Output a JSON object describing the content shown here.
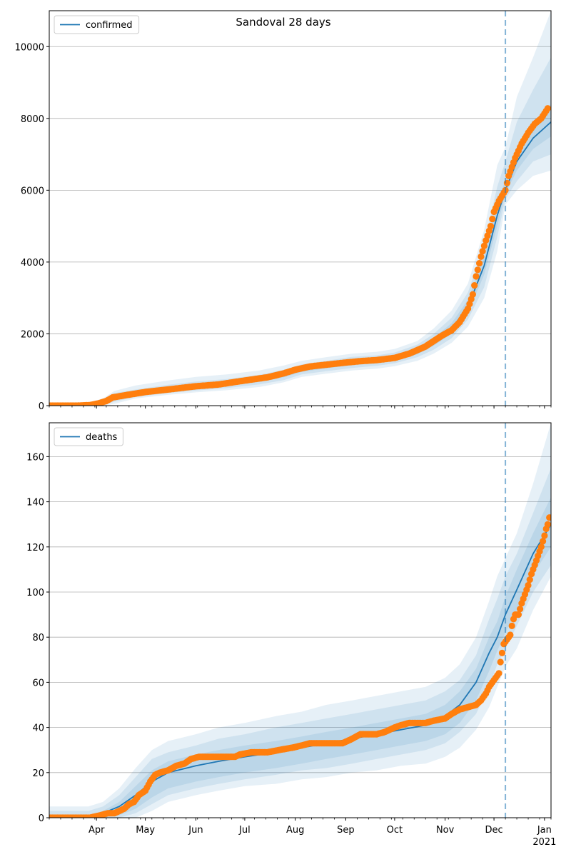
{
  "title": "Sandoval 28 days",
  "colors": {
    "model": "#1f77b4",
    "observed": "#ff7f0e",
    "band": "#1f77b4",
    "grid": "#b0b0b0"
  },
  "x_axis": {
    "start": "2020-03-03",
    "end": "2021-01-05",
    "forecast_date": "2020-12-08",
    "ticks": [
      {
        "date": "2020-04-01",
        "label": "Apr"
      },
      {
        "date": "2020-05-01",
        "label": "May"
      },
      {
        "date": "2020-06-01",
        "label": "Jun"
      },
      {
        "date": "2020-07-01",
        "label": "Jul"
      },
      {
        "date": "2020-08-01",
        "label": "Aug"
      },
      {
        "date": "2020-09-01",
        "label": "Sep"
      },
      {
        "date": "2020-10-01",
        "label": "Oct"
      },
      {
        "date": "2020-11-01",
        "label": "Nov"
      },
      {
        "date": "2020-12-01",
        "label": "Dec"
      },
      {
        "date": "2021-01-01",
        "label": "Jan"
      }
    ],
    "year_label": "2021"
  },
  "chart_data": [
    {
      "type": "line",
      "legend": "confirmed",
      "legend_position": "top-left",
      "grid": "y",
      "ylim": [
        0,
        11000
      ],
      "yticks": [
        0,
        2000,
        4000,
        6000,
        8000,
        10000
      ],
      "model": {
        "name": "confirmed",
        "points": [
          [
            "2020-03-03",
            0
          ],
          [
            "2020-03-27",
            5
          ],
          [
            "2020-04-05",
            100
          ],
          [
            "2020-04-12",
            230
          ],
          [
            "2020-04-25",
            330
          ],
          [
            "2020-05-15",
            450
          ],
          [
            "2020-06-01",
            530
          ],
          [
            "2020-06-20",
            600
          ],
          [
            "2020-07-10",
            720
          ],
          [
            "2020-07-25",
            850
          ],
          [
            "2020-08-05",
            1000
          ],
          [
            "2020-08-20",
            1100
          ],
          [
            "2020-09-05",
            1200
          ],
          [
            "2020-09-20",
            1250
          ],
          [
            "2020-10-01",
            1330
          ],
          [
            "2020-10-15",
            1520
          ],
          [
            "2020-10-25",
            1780
          ],
          [
            "2020-11-05",
            2150
          ],
          [
            "2020-11-15",
            2750
          ],
          [
            "2020-11-25",
            3900
          ],
          [
            "2020-12-03",
            5300
          ],
          [
            "2020-12-08",
            6000
          ],
          [
            "2020-12-15",
            6800
          ],
          [
            "2020-12-25",
            7450
          ],
          [
            "2021-01-05",
            7900
          ]
        ],
        "bands": [
          {
            "lower": [
              0,
              0,
              0,
              50,
              200,
              300,
              370,
              430,
              520,
              650,
              800,
              890,
              980,
              1030,
              1100,
              1250,
              1450,
              1750,
              2200,
              3000,
              4300,
              5600,
              6000,
              6400,
              6550
            ],
            "upper": [
              80,
              80,
              200,
              410,
              560,
              700,
              800,
              870,
              980,
              1120,
              1250,
              1350,
              1450,
              1500,
              1580,
              1800,
              2150,
              2650,
              3400,
              4900,
              6700,
              7200,
              8600,
              9700,
              11000
            ]
          },
          {
            "lower": [
              0,
              0,
              20,
              110,
              240,
              350,
              420,
              490,
              590,
              710,
              870,
              960,
              1050,
              1110,
              1180,
              1350,
              1560,
              1880,
              2400,
              3300,
              4700,
              5750,
              6250,
              6800,
              7000
            ],
            "upper": [
              40,
              40,
              170,
              350,
              450,
              580,
              670,
              740,
              860,
              1000,
              1150,
              1250,
              1360,
              1400,
              1480,
              1700,
              2000,
              2450,
              3150,
              4500,
              6100,
              6800,
              7900,
              8800,
              9700
            ]
          },
          {
            "lower": [
              0,
              0,
              60,
              180,
              280,
              400,
              480,
              550,
              660,
              790,
              940,
              1040,
              1130,
              1180,
              1250,
              1430,
              1670,
              2000,
              2570,
              3650,
              5000,
              5900,
              6550,
              7150,
              7500
            ],
            "upper": [
              15,
              15,
              130,
              280,
              380,
              500,
              580,
              650,
              780,
              910,
              1060,
              1160,
              1270,
              1320,
              1410,
              1610,
              1890,
              2300,
              2950,
              4150,
              5600,
              6300,
              7200,
              7900,
              8400
            ]
          }
        ]
      },
      "observed": {
        "name": "observed",
        "points": [
          [
            "2020-03-03",
            0
          ],
          [
            "2020-03-20",
            0
          ],
          [
            "2020-03-28",
            15
          ],
          [
            "2020-04-02",
            60
          ],
          [
            "2020-04-07",
            130
          ],
          [
            "2020-04-11",
            230
          ],
          [
            "2020-04-20",
            300
          ],
          [
            "2020-05-01",
            380
          ],
          [
            "2020-05-15",
            450
          ],
          [
            "2020-06-01",
            540
          ],
          [
            "2020-06-15",
            590
          ],
          [
            "2020-07-01",
            700
          ],
          [
            "2020-07-15",
            790
          ],
          [
            "2020-07-25",
            900
          ],
          [
            "2020-08-01",
            1000
          ],
          [
            "2020-08-10",
            1090
          ],
          [
            "2020-08-20",
            1140
          ],
          [
            "2020-09-01",
            1200
          ],
          [
            "2020-09-10",
            1240
          ],
          [
            "2020-09-20",
            1270
          ],
          [
            "2020-10-01",
            1330
          ],
          [
            "2020-10-10",
            1450
          ],
          [
            "2020-10-20",
            1650
          ],
          [
            "2020-10-30",
            1950
          ],
          [
            "2020-11-05",
            2100
          ],
          [
            "2020-11-10",
            2330
          ],
          [
            "2020-11-15",
            2700
          ],
          [
            "2020-11-18",
            3100
          ],
          [
            "2020-11-20",
            3600
          ],
          [
            "2020-11-23",
            4150
          ],
          [
            "2020-11-26",
            4600
          ],
          [
            "2020-11-29",
            5000
          ],
          [
            "2020-12-01",
            5400
          ],
          [
            "2020-12-04",
            5700
          ],
          [
            "2020-12-08",
            6000
          ],
          [
            "2020-12-10",
            6400
          ],
          [
            "2020-12-14",
            6900
          ],
          [
            "2020-12-18",
            7300
          ],
          [
            "2020-12-22",
            7600
          ],
          [
            "2020-12-26",
            7850
          ],
          [
            "2020-12-30",
            8000
          ],
          [
            "2021-01-03",
            8280
          ]
        ]
      }
    },
    {
      "type": "line",
      "legend": "deaths",
      "legend_position": "top-left",
      "grid": "y",
      "ylim": [
        0,
        175
      ],
      "yticks": [
        0,
        20,
        40,
        60,
        80,
        100,
        120,
        140,
        160
      ],
      "model": {
        "name": "deaths",
        "points": [
          [
            "2020-03-03",
            0
          ],
          [
            "2020-03-27",
            0
          ],
          [
            "2020-04-05",
            2
          ],
          [
            "2020-04-15",
            5
          ],
          [
            "2020-04-25",
            10
          ],
          [
            "2020-05-05",
            16
          ],
          [
            "2020-05-15",
            20
          ],
          [
            "2020-06-01",
            23
          ],
          [
            "2020-06-15",
            25
          ],
          [
            "2020-07-01",
            27
          ],
          [
            "2020-07-20",
            29
          ],
          [
            "2020-08-05",
            31
          ],
          [
            "2020-08-20",
            33
          ],
          [
            "2020-09-05",
            35
          ],
          [
            "2020-09-20",
            37
          ],
          [
            "2020-10-05",
            39
          ],
          [
            "2020-10-20",
            41
          ],
          [
            "2020-11-01",
            45
          ],
          [
            "2020-11-10",
            50
          ],
          [
            "2020-11-20",
            60
          ],
          [
            "2020-11-28",
            73
          ],
          [
            "2020-12-03",
            80
          ],
          [
            "2020-12-08",
            90
          ],
          [
            "2020-12-15",
            101
          ],
          [
            "2020-12-25",
            117
          ],
          [
            "2021-01-05",
            130
          ]
        ],
        "bands": [
          {
            "lower": [
              0,
              0,
              0,
              0,
              0,
              3,
              7,
              10,
              12,
              14,
              15,
              17,
              18,
              20,
              21,
              23,
              24,
              27,
              31,
              39,
              49,
              58,
              67,
              75,
              92,
              107
            ],
            "upper": [
              5,
              5,
              7,
              13,
              22,
              30,
              34,
              37,
              40,
              42,
              45,
              47,
              50,
              52,
              54,
              56,
              58,
              62,
              68,
              80,
              96,
              107,
              115,
              126,
              148,
              175
            ]
          },
          {
            "lower": [
              0,
              0,
              0,
              0,
              2,
              6,
              10,
              13,
              15,
              17,
              19,
              21,
              22,
              24,
              26,
              28,
              30,
              33,
              38,
              46,
              58,
              68,
              75,
              85,
              100,
              112
            ],
            "upper": [
              3,
              3,
              5,
              10,
              18,
              26,
              29,
              32,
              35,
              37,
              40,
              42,
              44,
              46,
              48,
              50,
              52,
              56,
              61,
              72,
              88,
              97,
              107,
              117,
              135,
              155
            ]
          },
          {
            "lower": [
              0,
              0,
              0,
              1,
              4,
              9,
              13,
              16,
              18,
              20,
              22,
              24,
              26,
              28,
              30,
              32,
              34,
              37,
              42,
              52,
              65,
              74,
              82,
              92,
              108,
              120
            ],
            "upper": [
              1,
              1,
              3,
              7,
              14,
              21,
              25,
              28,
              30,
              32,
              34,
              36,
              38,
              40,
              42,
              44,
              46,
              50,
              56,
              66,
              80,
              87,
              98,
              110,
              126,
              142
            ]
          }
        ]
      },
      "observed": {
        "name": "observed",
        "points": [
          [
            "2020-03-03",
            0
          ],
          [
            "2020-03-15",
            0
          ],
          [
            "2020-03-28",
            0
          ],
          [
            "2020-04-03",
            1
          ],
          [
            "2020-04-08",
            2
          ],
          [
            "2020-04-12",
            2
          ],
          [
            "2020-04-15",
            3
          ],
          [
            "2020-04-18",
            4
          ],
          [
            "2020-04-21",
            6
          ],
          [
            "2020-04-24",
            7
          ],
          [
            "2020-04-27",
            10
          ],
          [
            "2020-05-01",
            12
          ],
          [
            "2020-05-04",
            16
          ],
          [
            "2020-05-07",
            19
          ],
          [
            "2020-05-10",
            20
          ],
          [
            "2020-05-15",
            21
          ],
          [
            "2020-05-20",
            23
          ],
          [
            "2020-05-25",
            24
          ],
          [
            "2020-05-29",
            26
          ],
          [
            "2020-06-03",
            27
          ],
          [
            "2020-06-15",
            27
          ],
          [
            "2020-06-25",
            27
          ],
          [
            "2020-06-28",
            28
          ],
          [
            "2020-07-05",
            29
          ],
          [
            "2020-07-15",
            29
          ],
          [
            "2020-07-22",
            30
          ],
          [
            "2020-07-30",
            31
          ],
          [
            "2020-08-05",
            32
          ],
          [
            "2020-08-10",
            33
          ],
          [
            "2020-08-20",
            33
          ],
          [
            "2020-08-30",
            33
          ],
          [
            "2020-09-05",
            35
          ],
          [
            "2020-09-10",
            37
          ],
          [
            "2020-09-20",
            37
          ],
          [
            "2020-09-25",
            38
          ],
          [
            "2020-10-01",
            40
          ],
          [
            "2020-10-05",
            41
          ],
          [
            "2020-10-10",
            42
          ],
          [
            "2020-10-20",
            42
          ],
          [
            "2020-10-25",
            43
          ],
          [
            "2020-11-01",
            44
          ],
          [
            "2020-11-05",
            46
          ],
          [
            "2020-11-10",
            48
          ],
          [
            "2020-11-15",
            49
          ],
          [
            "2020-11-20",
            50
          ],
          [
            "2020-11-23",
            52
          ],
          [
            "2020-11-26",
            55
          ],
          [
            "2020-11-28",
            58
          ],
          [
            "2020-11-30",
            60
          ],
          [
            "2020-12-02",
            62
          ],
          [
            "2020-12-04",
            64
          ],
          [
            "2020-12-05",
            69
          ],
          [
            "2020-12-06",
            73
          ],
          [
            "2020-12-07",
            77
          ],
          [
            "2020-12-09",
            79
          ],
          [
            "2020-12-11",
            81
          ],
          [
            "2020-12-12",
            85
          ],
          [
            "2020-12-13",
            88
          ],
          [
            "2020-12-14",
            90
          ],
          [
            "2020-12-16",
            90
          ],
          [
            "2020-12-18",
            95
          ],
          [
            "2020-12-20",
            99
          ],
          [
            "2020-12-22",
            103
          ],
          [
            "2020-12-24",
            108
          ],
          [
            "2020-12-26",
            112
          ],
          [
            "2020-12-28",
            116
          ],
          [
            "2020-12-30",
            120
          ],
          [
            "2021-01-01",
            125
          ],
          [
            "2021-01-02",
            128
          ],
          [
            "2021-01-03",
            130
          ],
          [
            "2021-01-04",
            133
          ]
        ]
      }
    }
  ]
}
